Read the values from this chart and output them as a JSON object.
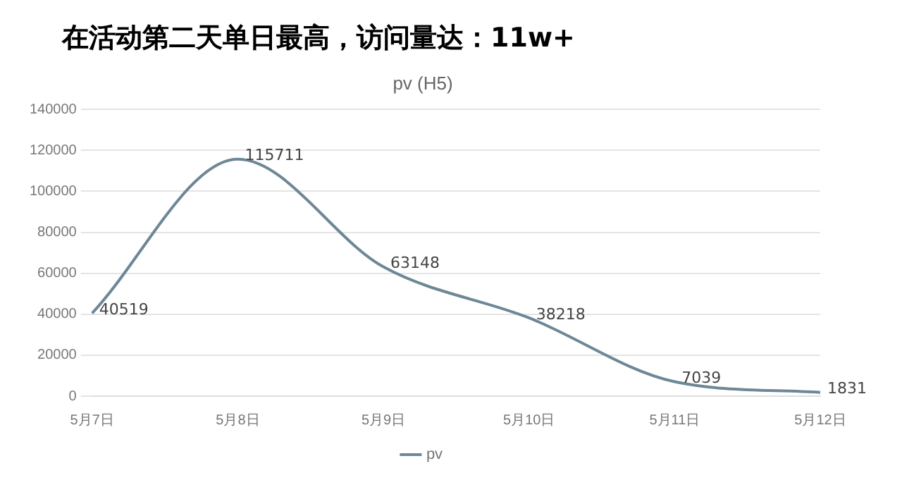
{
  "chart_data": {
    "type": "line",
    "title": "在活动第二天单日最高，访问量达：11w+",
    "subtitle": "pv (H5)",
    "categories": [
      "5月7日",
      "5月8日",
      "5月9日",
      "5月10日",
      "5月11日",
      "5月12日"
    ],
    "series": [
      {
        "name": "pv",
        "color": "#6e8796",
        "values": [
          40519,
          115711,
          63148,
          38218,
          7039,
          1831
        ]
      }
    ],
    "ylim": [
      0,
      140000
    ],
    "yticks": [
      0,
      20000,
      40000,
      60000,
      80000,
      100000,
      120000,
      140000
    ],
    "grid": "y",
    "legend": "bottom",
    "data_labels": true,
    "marker": "none"
  }
}
